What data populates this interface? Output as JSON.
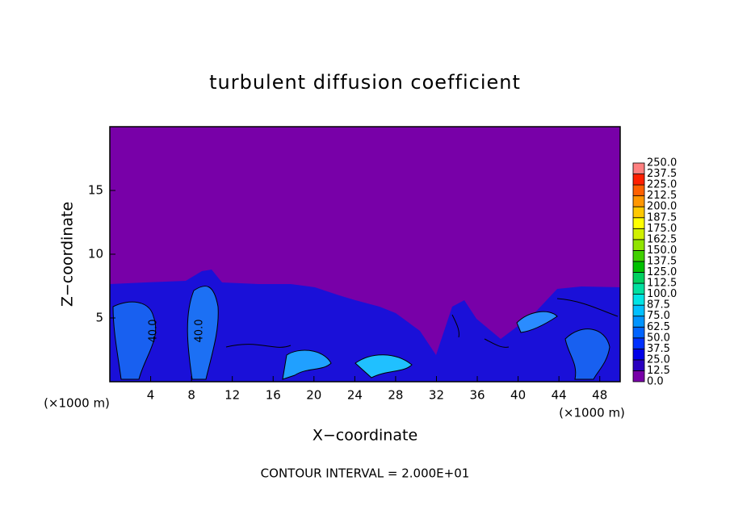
{
  "chart_data": {
    "type": "contour",
    "title": "turbulent diffusion coefficient",
    "x_label": "X−coordinate",
    "y_label": "Z−coordinate",
    "x_unit_left": "(×1000 m)",
    "x_unit_right": "(×1000 m)",
    "footer": "CONTOUR INTERVAL = 2.000E+01",
    "xlim": [
      0,
      50
    ],
    "xticks": [
      4,
      8,
      12,
      16,
      20,
      24,
      28,
      32,
      36,
      40,
      44,
      48
    ],
    "ylim": [
      0,
      20
    ],
    "yticks": [
      5,
      10,
      15
    ],
    "contour_labels": [
      "40.0",
      "40.0"
    ],
    "colorbar": {
      "ticks": [
        {
          "value": 0,
          "label": "0.0"
        },
        {
          "value": 12.5,
          "label": "12.5"
        },
        {
          "value": 25,
          "label": "25.0"
        },
        {
          "value": 37.5,
          "label": "37.5"
        },
        {
          "value": 50,
          "label": "50.0"
        },
        {
          "value": 62.5,
          "label": "62.5"
        },
        {
          "value": 75,
          "label": "75.0"
        },
        {
          "value": 87.5,
          "label": "87.5"
        },
        {
          "value": 100,
          "label": "100.0"
        },
        {
          "value": 112.5,
          "label": "112.5"
        },
        {
          "value": 125,
          "label": "125.0"
        },
        {
          "value": 137.5,
          "label": "137.5"
        },
        {
          "value": 150,
          "label": "150.0"
        },
        {
          "value": 162.5,
          "label": "162.5"
        },
        {
          "value": 175,
          "label": "175.0"
        },
        {
          "value": 187.5,
          "label": "187.5"
        },
        {
          "value": 200,
          "label": "200.0"
        },
        {
          "value": 212.5,
          "label": "212.5"
        },
        {
          "value": 225,
          "label": "225.0"
        },
        {
          "value": 237.5,
          "label": "237.5"
        },
        {
          "value": 250,
          "label": "250.0"
        }
      ],
      "colors": [
        "#7800a8",
        "#2a00c0",
        "#0000e8",
        "#0030ff",
        "#0064ff",
        "#0094ff",
        "#00c0ff",
        "#00e4e4",
        "#00e0a0",
        "#00d060",
        "#00c000",
        "#40d000",
        "#90e400",
        "#d0f000",
        "#ffff00",
        "#ffc800",
        "#ff9600",
        "#ff6000",
        "#ff2000",
        "#ff8080"
      ]
    }
  }
}
